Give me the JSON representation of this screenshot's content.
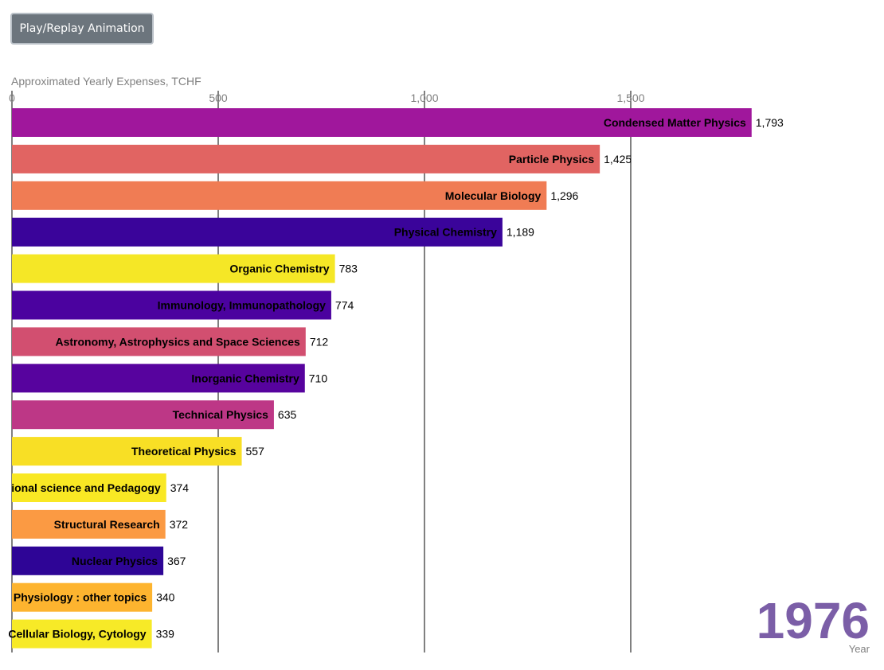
{
  "controls": {
    "play_label": "Play/Replay Animation"
  },
  "chart_data": {
    "type": "bar",
    "orientation": "horizontal",
    "title": "Approximated Yearly Expenses, TCHF",
    "xlim": [
      0,
      1800
    ],
    "xticks": [
      0,
      500,
      1000,
      1500
    ],
    "xtick_labels": [
      "0",
      "500",
      "1,000",
      "1,500"
    ],
    "grid": true,
    "year": "1976",
    "year_caption": "Year",
    "year_color": "#7b5ea7",
    "categories": [
      "Condensed Matter Physics",
      "Particle Physics",
      "Molecular Biology",
      "Physical Chemistry",
      "Organic Chemistry",
      "Immunology, Immunopathology",
      "Astronomy, Astrophysics and Space Sciences",
      "Inorganic Chemistry",
      "Technical Physics",
      "Theoretical Physics",
      "ional science and Pedagogy",
      "Structural Research",
      "Nuclear Physics",
      "Physiology : other topics",
      "Cellular Biology, Cytology"
    ],
    "values": [
      1793,
      1425,
      1296,
      1189,
      783,
      774,
      712,
      710,
      635,
      557,
      374,
      372,
      367,
      340,
      339
    ],
    "value_labels": [
      "1,793",
      "1,425",
      "1,296",
      "1,189",
      "783",
      "774",
      "712",
      "710",
      "635",
      "557",
      "374",
      "372",
      "367",
      "340",
      "339"
    ],
    "colors": [
      "#a0179c",
      "#e16462",
      "#f07c54",
      "#3a049a",
      "#f5e726",
      "#4b029f",
      "#d24f70",
      "#57039e",
      "#bd3786",
      "#f8df25",
      "#f9e824",
      "#fb9a43",
      "#2e0596",
      "#fdb42f",
      "#f7ea27"
    ]
  }
}
